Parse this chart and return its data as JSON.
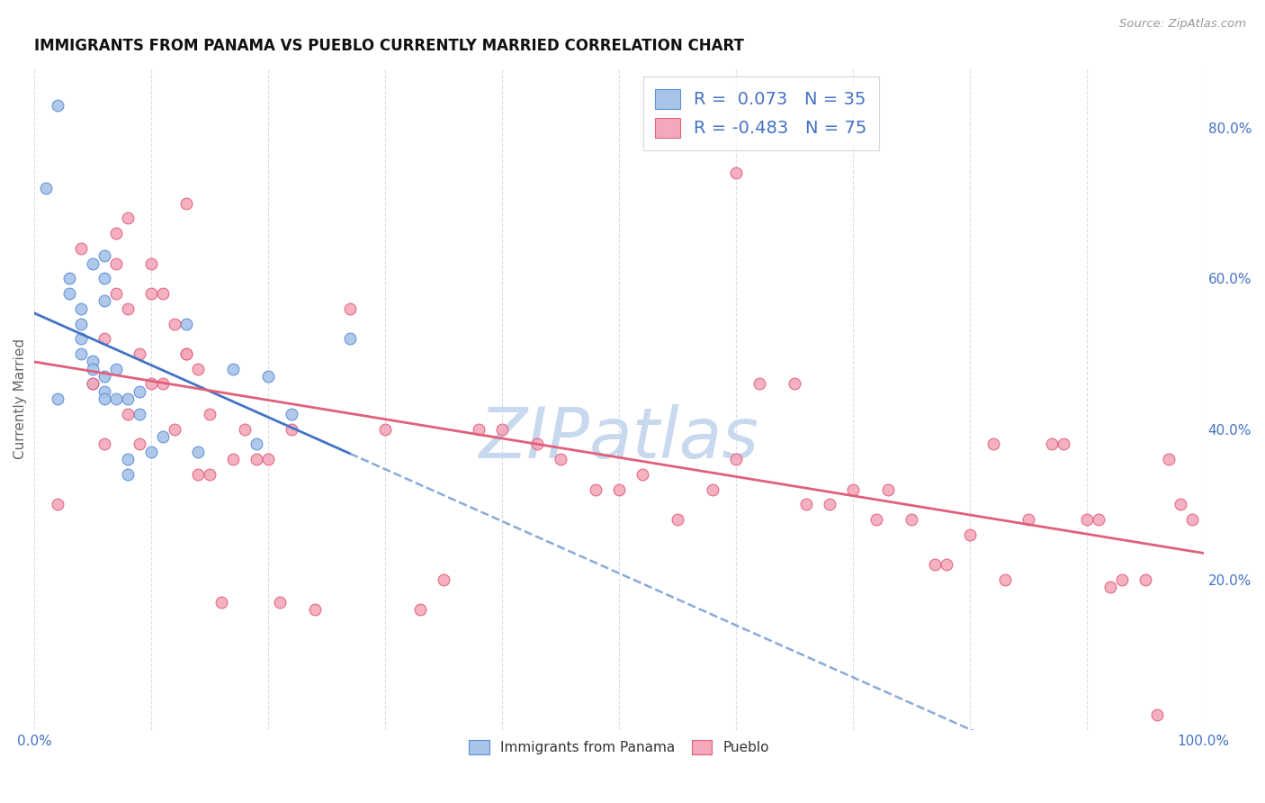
{
  "title": "IMMIGRANTS FROM PANAMA VS PUEBLO CURRENTLY MARRIED CORRELATION CHART",
  "source": "Source: ZipAtlas.com",
  "ylabel": "Currently Married",
  "legend_labels": [
    "Immigrants from Panama",
    "Pueblo"
  ],
  "r_blue": 0.073,
  "n_blue": 35,
  "r_pink": -0.483,
  "n_pink": 75,
  "blue_scatter_color": "#a8c4e8",
  "blue_edge_color": "#5b8dd9",
  "pink_scatter_color": "#f4a8bc",
  "pink_edge_color": "#e0607a",
  "blue_line_color": "#4472c4",
  "blue_dash_color": "#89aad8",
  "pink_line_color": "#e0607a",
  "axis_color": "#4472c4",
  "watermark_color": "#c8d8ee",
  "background": "#ffffff",
  "grid_color": "#dcdce8",
  "xlim": [
    0.0,
    1.0
  ],
  "ylim": [
    0.0,
    0.88
  ],
  "right_yticks": [
    0.2,
    0.4,
    0.6,
    0.8
  ],
  "right_yticklabels": [
    "20.0%",
    "40.0%",
    "60.0%",
    "80.0%"
  ],
  "blue_scatter_x": [
    0.01,
    0.02,
    0.03,
    0.03,
    0.04,
    0.04,
    0.04,
    0.04,
    0.05,
    0.05,
    0.05,
    0.05,
    0.06,
    0.06,
    0.06,
    0.06,
    0.06,
    0.06,
    0.07,
    0.07,
    0.08,
    0.08,
    0.08,
    0.09,
    0.09,
    0.1,
    0.11,
    0.13,
    0.14,
    0.17,
    0.19,
    0.2,
    0.22,
    0.27,
    0.02
  ],
  "blue_scatter_y": [
    0.72,
    0.83,
    0.6,
    0.58,
    0.56,
    0.54,
    0.52,
    0.5,
    0.49,
    0.48,
    0.46,
    0.62,
    0.63,
    0.6,
    0.57,
    0.47,
    0.45,
    0.44,
    0.48,
    0.44,
    0.44,
    0.36,
    0.34,
    0.45,
    0.42,
    0.37,
    0.39,
    0.54,
    0.37,
    0.48,
    0.38,
    0.47,
    0.42,
    0.52,
    0.44
  ],
  "pink_scatter_x": [
    0.02,
    0.05,
    0.06,
    0.06,
    0.07,
    0.07,
    0.07,
    0.08,
    0.08,
    0.09,
    0.09,
    0.1,
    0.1,
    0.1,
    0.11,
    0.11,
    0.12,
    0.12,
    0.13,
    0.13,
    0.14,
    0.14,
    0.15,
    0.15,
    0.16,
    0.17,
    0.18,
    0.19,
    0.2,
    0.21,
    0.22,
    0.24,
    0.27,
    0.3,
    0.33,
    0.35,
    0.38,
    0.4,
    0.43,
    0.45,
    0.48,
    0.5,
    0.52,
    0.55,
    0.58,
    0.6,
    0.6,
    0.62,
    0.65,
    0.66,
    0.68,
    0.7,
    0.72,
    0.73,
    0.75,
    0.77,
    0.78,
    0.8,
    0.82,
    0.83,
    0.85,
    0.87,
    0.88,
    0.9,
    0.91,
    0.92,
    0.93,
    0.95,
    0.96,
    0.97,
    0.98,
    0.99,
    0.04,
    0.08,
    0.13
  ],
  "pink_scatter_y": [
    0.3,
    0.46,
    0.52,
    0.38,
    0.66,
    0.62,
    0.58,
    0.56,
    0.42,
    0.5,
    0.38,
    0.62,
    0.58,
    0.46,
    0.58,
    0.46,
    0.54,
    0.4,
    0.7,
    0.5,
    0.48,
    0.34,
    0.42,
    0.34,
    0.17,
    0.36,
    0.4,
    0.36,
    0.36,
    0.17,
    0.4,
    0.16,
    0.56,
    0.4,
    0.16,
    0.2,
    0.4,
    0.4,
    0.38,
    0.36,
    0.32,
    0.32,
    0.34,
    0.28,
    0.32,
    0.36,
    0.74,
    0.46,
    0.46,
    0.3,
    0.3,
    0.32,
    0.28,
    0.32,
    0.28,
    0.22,
    0.22,
    0.26,
    0.38,
    0.2,
    0.28,
    0.38,
    0.38,
    0.28,
    0.28,
    0.19,
    0.2,
    0.2,
    0.02,
    0.36,
    0.3,
    0.28,
    0.64,
    0.68,
    0.5
  ]
}
